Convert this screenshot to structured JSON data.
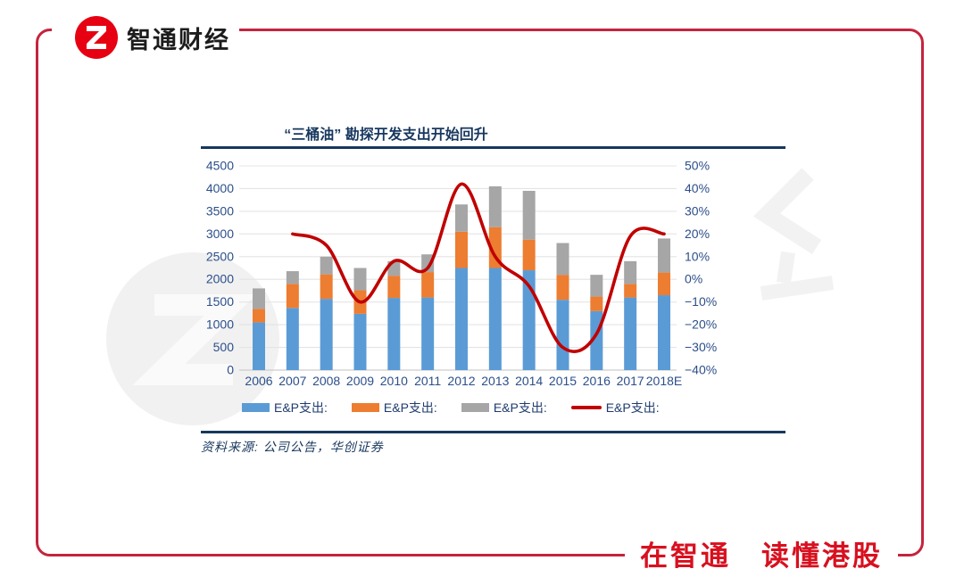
{
  "header": {
    "brand_name": "智通财经"
  },
  "footer": {
    "slogan": "在智通　读懂港股"
  },
  "source_note": "资料来源: 公司公告，华创证券",
  "colors": {
    "frame_red": "#C5243E",
    "logo_red": "#E60012",
    "slogan_red": "#D8101F",
    "navy": "#17375E",
    "tick_navy": "#2C4F8A",
    "grid": "#E4E4E4",
    "axis_line": "#C2C2C2",
    "bar_blue": "#5B9BD5",
    "bar_orange": "#ED7D31",
    "bar_gray": "#A6A6A6",
    "line_red": "#C00000"
  },
  "chart_data": {
    "type": "combo (stacked bar + smooth line)",
    "title": "“三桶油” 勘探开发支出开始回升",
    "categories": [
      "2006",
      "2007",
      "2008",
      "2009",
      "2010",
      "2011",
      "2012",
      "2013",
      "2014",
      "2015",
      "2016",
      "2017",
      "2018E"
    ],
    "bar_series": [
      {
        "name": "E&P支出:",
        "color": "#5B9BD5",
        "values": [
          1050,
          1370,
          1570,
          1240,
          1590,
          1600,
          2250,
          2250,
          2200,
          1550,
          1300,
          1600,
          1650
        ]
      },
      {
        "name": "E&P支出:",
        "color": "#ED7D31",
        "values": [
          300,
          530,
          540,
          520,
          490,
          560,
          800,
          900,
          675,
          550,
          320,
          300,
          500
        ]
      },
      {
        "name": "E&P支出:",
        "color": "#A6A6A6",
        "values": [
          450,
          280,
          390,
          490,
          320,
          390,
          600,
          900,
          1075,
          700,
          480,
          500,
          750
        ]
      }
    ],
    "line_series": {
      "name": "E&P支出:",
      "color": "#C00000",
      "axis": "right",
      "values": [
        null,
        20,
        15,
        -10,
        8,
        5,
        42,
        10,
        -3,
        -30,
        -24,
        19,
        20
      ]
    },
    "left_axis": {
      "min": 0,
      "max": 4500,
      "step": 500,
      "ticks": [
        "4500",
        "4000",
        "3500",
        "3000",
        "2500",
        "2000",
        "1500",
        "1000",
        "500",
        "0"
      ]
    },
    "right_axis": {
      "min": -40,
      "max": 50,
      "step": 10,
      "ticks": [
        "50%",
        "40%",
        "30%",
        "20%",
        "10%",
        "0%",
        "−10%",
        "−20%",
        "−30%",
        "−40%"
      ]
    },
    "grid": "horizontal only",
    "legend_position": "bottom"
  }
}
